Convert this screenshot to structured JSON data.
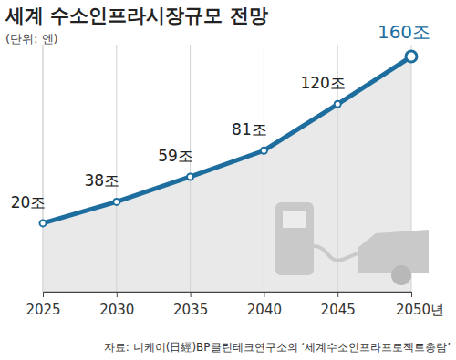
{
  "chart_data": {
    "type": "line",
    "title": "세계 수소인프라시장규모 전망",
    "subtitle": "(단위: 엔)",
    "source": "자료: 니케이(日經)BP클린테크연구소의 ‘세계수소인프라프로젝트총람’",
    "categories": [
      "2025",
      "2030",
      "2035",
      "2040",
      "2045",
      "2050년"
    ],
    "values": [
      20,
      38,
      59,
      81,
      120,
      160
    ],
    "value_labels": [
      "20조",
      "38조",
      "59조",
      "81조",
      "120조",
      "160조"
    ],
    "color": "#1d6e9e",
    "ylim": [
      -37.5,
      170
    ],
    "data_labels": true,
    "tick_labels": "x",
    "grid": true,
    "marker": "circle"
  }
}
